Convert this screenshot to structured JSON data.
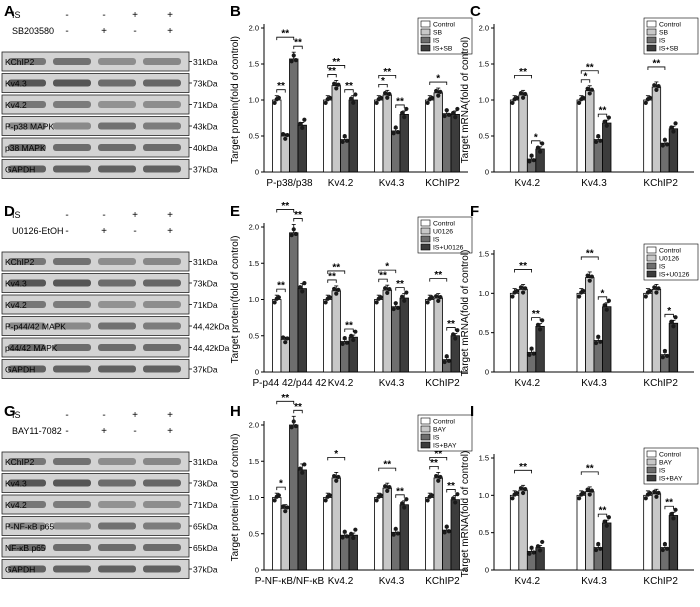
{
  "panels": [
    {
      "letter": "A",
      "treatments": [
        {
          "name": "IS",
          "signs": [
            "-",
            "-",
            "+",
            "+"
          ]
        },
        {
          "name": "SB203580",
          "signs": [
            "-",
            "+",
            "-",
            "+"
          ]
        }
      ],
      "blots": [
        {
          "protein": "KChIP2",
          "kda": "31kDa"
        },
        {
          "protein": "Kv4.3",
          "kda": "73kDa"
        },
        {
          "protein": "Kv4.2",
          "kda": "71kDa"
        },
        {
          "protein": "P-p38 MAPK",
          "kda": "43kDa"
        },
        {
          "protein": "p38 MAPK",
          "kda": "40kDa"
        },
        {
          "protein": "GAPDH",
          "kda": "37kDa"
        }
      ]
    },
    {
      "letter": "D",
      "treatments": [
        {
          "name": "IS",
          "signs": [
            "-",
            "-",
            "+",
            "+"
          ]
        },
        {
          "name": "U0126-EtOH",
          "signs": [
            "-",
            "+",
            "-",
            "+"
          ]
        }
      ],
      "blots": [
        {
          "protein": "KChIP2",
          "kda": "31kDa"
        },
        {
          "protein": "Kv4.3",
          "kda": "73kDa"
        },
        {
          "protein": "Kv4.2",
          "kda": "71kDa"
        },
        {
          "protein": "P-p44/42 MAPK",
          "kda": "44,42kDa"
        },
        {
          "protein": "p44/42 MAPK",
          "kda": "44,42kDa"
        },
        {
          "protein": "GAPDH",
          "kda": "37kDa"
        }
      ]
    },
    {
      "letter": "G",
      "treatments": [
        {
          "name": "IS",
          "signs": [
            "-",
            "-",
            "+",
            "+"
          ]
        },
        {
          "name": "BAY11-7082",
          "signs": [
            "-",
            "+",
            "-",
            "+"
          ]
        }
      ],
      "blots": [
        {
          "protein": "KChIP2",
          "kda": "31kDa"
        },
        {
          "protein": "Kv4.3",
          "kda": "73kDa"
        },
        {
          "protein": "Kv4.2",
          "kda": "71kDa"
        },
        {
          "protein": "P-NF-κB p65",
          "kda": "65kDa"
        },
        {
          "protein": "NF-κB p65",
          "kda": "65kDa"
        },
        {
          "protein": "GAPDH",
          "kda": "37kDa"
        }
      ]
    }
  ],
  "colors": {
    "control": "#ffffff",
    "inhibitor": "#c8c8c8",
    "is": "#6e6e6e",
    "is_plus_inhibitor": "#3c3c3c",
    "dot": "#1a1a1a"
  },
  "chart_data": [
    {
      "letter": "B",
      "type": "bar",
      "ylabel": "Target protein(fold of control)",
      "ylim": [
        0,
        2.0
      ],
      "yticks": [
        0,
        0.5,
        1.0,
        1.5,
        2.0
      ],
      "categories": [
        "P-p38/p38",
        "Kv4.2",
        "Kv4.3",
        "KChIP2"
      ],
      "legend": [
        "Control",
        "SB",
        "IS",
        "IS+SB"
      ],
      "legend_position": "top-right",
      "series": [
        {
          "name": "Control",
          "values": [
            1.0,
            1.0,
            1.0,
            1.0
          ]
        },
        {
          "name": "SB",
          "values": [
            0.5,
            1.2,
            1.07,
            1.1
          ]
        },
        {
          "name": "IS",
          "values": [
            1.57,
            0.45,
            0.57,
            0.81
          ]
        },
        {
          "name": "IS+SB",
          "values": [
            0.65,
            1.0,
            0.8,
            0.8
          ]
        }
      ],
      "significance": [
        {
          "group": 0,
          "from": 0,
          "to": 2,
          "level": 1,
          "label": "**"
        },
        {
          "group": 0,
          "from": 0,
          "to": 1,
          "level": 0,
          "label": "**"
        },
        {
          "group": 0,
          "from": 2,
          "to": 3,
          "level": 0,
          "label": "**"
        },
        {
          "group": 1,
          "from": 0,
          "to": 2,
          "level": 1,
          "label": "**"
        },
        {
          "group": 1,
          "from": 0,
          "to": 1,
          "level": 0,
          "label": "**"
        },
        {
          "group": 1,
          "from": 2,
          "to": 3,
          "level": 0,
          "label": "**"
        },
        {
          "group": 2,
          "from": 0,
          "to": 2,
          "level": 1,
          "label": "**"
        },
        {
          "group": 2,
          "from": 0,
          "to": 1,
          "level": 0,
          "label": "*"
        },
        {
          "group": 2,
          "from": 2,
          "to": 3,
          "level": 0,
          "label": "**"
        },
        {
          "group": 3,
          "from": 0,
          "to": 2,
          "level": 0,
          "label": "*"
        }
      ]
    },
    {
      "letter": "C",
      "type": "bar",
      "ylabel": "Target mRNA(fold of control)",
      "ylim": [
        0,
        2.0
      ],
      "yticks": [
        0,
        0.5,
        1.0,
        1.5,
        2.0
      ],
      "categories": [
        "Kv4.2",
        "Kv4.3",
        "KChIP2"
      ],
      "legend": [
        "Control",
        "SB",
        "IS",
        "IS+SB"
      ],
      "legend_position": "top-right",
      "series": [
        {
          "name": "Control",
          "values": [
            1.0,
            1.0,
            1.0
          ]
        },
        {
          "name": "SB",
          "values": [
            1.07,
            1.13,
            1.18
          ]
        },
        {
          "name": "IS",
          "values": [
            0.18,
            0.45,
            0.4
          ]
        },
        {
          "name": "IS+SB",
          "values": [
            0.32,
            0.68,
            0.6
          ]
        }
      ],
      "significance": [
        {
          "group": 0,
          "from": 0,
          "to": 2,
          "level": 1,
          "label": "**"
        },
        {
          "group": 0,
          "from": 2,
          "to": 3,
          "level": 0,
          "label": "*"
        },
        {
          "group": 1,
          "from": 0,
          "to": 2,
          "level": 1,
          "label": "**"
        },
        {
          "group": 1,
          "from": 0,
          "to": 1,
          "level": 0,
          "label": "*"
        },
        {
          "group": 1,
          "from": 2,
          "to": 3,
          "level": 0,
          "label": "**"
        },
        {
          "group": 2,
          "from": 0,
          "to": 2,
          "level": 1,
          "label": "**"
        }
      ]
    },
    {
      "letter": "E",
      "type": "bar",
      "ylabel": "Target protein(fold of control)",
      "ylim": [
        0,
        2.0
      ],
      "yticks": [
        0,
        0.5,
        1.0,
        1.5,
        2.0
      ],
      "categories": [
        "P-p44 42/p44 42",
        "Kv4.2",
        "Kv4.3",
        "KChIP2"
      ],
      "legend": [
        "Control",
        "U0126",
        "IS",
        "IS+U0126"
      ],
      "legend_position": "top-right",
      "series": [
        {
          "name": "Control",
          "values": [
            1.0,
            1.0,
            1.0,
            1.0
          ]
        },
        {
          "name": "U0126",
          "values": [
            0.45,
            1.12,
            1.13,
            1.02
          ]
        },
        {
          "name": "IS",
          "values": [
            1.92,
            0.42,
            0.9,
            0.17
          ]
        },
        {
          "name": "IS+U0126",
          "values": [
            1.15,
            0.48,
            1.02,
            0.5
          ]
        }
      ],
      "significance": [
        {
          "group": 0,
          "from": 0,
          "to": 2,
          "level": 1,
          "label": "**"
        },
        {
          "group": 0,
          "from": 0,
          "to": 1,
          "level": 0,
          "label": "**"
        },
        {
          "group": 0,
          "from": 2,
          "to": 3,
          "level": 0,
          "label": "**"
        },
        {
          "group": 1,
          "from": 0,
          "to": 2,
          "level": 1,
          "label": "**"
        },
        {
          "group": 1,
          "from": 0,
          "to": 1,
          "level": 0,
          "label": "**"
        },
        {
          "group": 1,
          "from": 2,
          "to": 3,
          "level": 0,
          "label": "**"
        },
        {
          "group": 2,
          "from": 0,
          "to": 2,
          "level": 1,
          "label": "*"
        },
        {
          "group": 2,
          "from": 0,
          "to": 1,
          "level": 0,
          "label": "**"
        },
        {
          "group": 2,
          "from": 2,
          "to": 3,
          "level": 0,
          "label": "**"
        },
        {
          "group": 3,
          "from": 0,
          "to": 2,
          "level": 1,
          "label": "**"
        },
        {
          "group": 3,
          "from": 2,
          "to": 3,
          "level": 0,
          "label": "**"
        }
      ]
    },
    {
      "letter": "F",
      "type": "bar",
      "ylabel": "Target mRNA(fold of control)",
      "ylim": [
        0,
        1.5
      ],
      "yticks": [
        0,
        0.5,
        1.0,
        1.5
      ],
      "categories": [
        "Kv4.2",
        "Kv4.3",
        "KChIP2"
      ],
      "legend": [
        "Control",
        "U0126",
        "IS",
        "IS+U0126"
      ],
      "legend_position": "top-right",
      "series": [
        {
          "name": "Control",
          "values": [
            1.0,
            1.0,
            1.0
          ]
        },
        {
          "name": "U0126",
          "values": [
            1.05,
            1.2,
            1.05
          ]
        },
        {
          "name": "IS",
          "values": [
            0.25,
            0.4,
            0.22
          ]
        },
        {
          "name": "IS+U0126",
          "values": [
            0.58,
            0.83,
            0.62
          ]
        }
      ],
      "significance": [
        {
          "group": 0,
          "from": 0,
          "to": 2,
          "level": 1,
          "label": "**"
        },
        {
          "group": 0,
          "from": 2,
          "to": 3,
          "level": 0,
          "label": "**"
        },
        {
          "group": 1,
          "from": 0,
          "to": 2,
          "level": 1,
          "label": "**"
        },
        {
          "group": 1,
          "from": 2,
          "to": 3,
          "level": 0,
          "label": "*"
        },
        {
          "group": 2,
          "from": 0,
          "to": 2,
          "level": 1,
          "label": "**"
        },
        {
          "group": 2,
          "from": 2,
          "to": 3,
          "level": 0,
          "label": "*"
        }
      ]
    },
    {
      "letter": "H",
      "type": "bar",
      "ylabel": "Target protein(fold of control)",
      "ylim": [
        0,
        2.0
      ],
      "yticks": [
        0,
        0.5,
        1.0,
        1.5,
        2.0
      ],
      "categories": [
        "P-NF-κB/NF-κB",
        "Kv4.2",
        "Kv4.3",
        "KChIP2"
      ],
      "legend": [
        "Control",
        "BAY",
        "IS",
        "IS+BAY"
      ],
      "legend_position": "top-right",
      "series": [
        {
          "name": "Control",
          "values": [
            1.0,
            1.0,
            1.0,
            1.0
          ]
        },
        {
          "name": "BAY",
          "values": [
            0.85,
            1.27,
            1.13,
            1.27
          ]
        },
        {
          "name": "IS",
          "values": [
            2.0,
            0.48,
            0.52,
            0.55
          ]
        },
        {
          "name": "IS+BAY",
          "values": [
            1.38,
            0.48,
            0.9,
            0.97
          ]
        }
      ],
      "significance": [
        {
          "group": 0,
          "from": 0,
          "to": 2,
          "level": 1,
          "label": "**"
        },
        {
          "group": 0,
          "from": 0,
          "to": 1,
          "level": 0,
          "label": "*"
        },
        {
          "group": 0,
          "from": 2,
          "to": 3,
          "level": 0,
          "label": "**"
        },
        {
          "group": 1,
          "from": 0,
          "to": 2,
          "level": 1,
          "label": "*"
        },
        {
          "group": 2,
          "from": 0,
          "to": 2,
          "level": 1,
          "label": "**"
        },
        {
          "group": 2,
          "from": 2,
          "to": 3,
          "level": 0,
          "label": "**"
        },
        {
          "group": 3,
          "from": 0,
          "to": 2,
          "level": 1,
          "label": "**"
        },
        {
          "group": 3,
          "from": 0,
          "to": 1,
          "level": 0,
          "label": "**"
        },
        {
          "group": 3,
          "from": 2,
          "to": 3,
          "level": 0,
          "label": "**"
        }
      ]
    },
    {
      "letter": "I",
      "type": "bar",
      "ylabel": "Target mRNA(fold of control)",
      "ylim": [
        0,
        1.5
      ],
      "yticks": [
        0,
        0.5,
        1.0,
        1.5
      ],
      "categories": [
        "Kv4.2",
        "Kv4.3",
        "KChIP2"
      ],
      "legend": [
        "Control",
        "BAY",
        "IS",
        "IS+BAY"
      ],
      "legend_position": "top-right",
      "series": [
        {
          "name": "Control",
          "values": [
            1.0,
            1.0,
            1.0
          ]
        },
        {
          "name": "BAY",
          "values": [
            1.07,
            1.05,
            1.02
          ]
        },
        {
          "name": "IS",
          "values": [
            0.25,
            0.3,
            0.3
          ]
        },
        {
          "name": "IS+BAY",
          "values": [
            0.3,
            0.63,
            0.73
          ]
        }
      ],
      "significance": [
        {
          "group": 0,
          "from": 0,
          "to": 2,
          "level": 1,
          "label": "**"
        },
        {
          "group": 1,
          "from": 0,
          "to": 2,
          "level": 1,
          "label": "**"
        },
        {
          "group": 1,
          "from": 2,
          "to": 3,
          "level": 0,
          "label": "**"
        },
        {
          "group": 2,
          "from": 0,
          "to": 2,
          "level": 1,
          "label": "**"
        },
        {
          "group": 2,
          "from": 2,
          "to": 3,
          "level": 0,
          "label": "**"
        }
      ]
    }
  ]
}
